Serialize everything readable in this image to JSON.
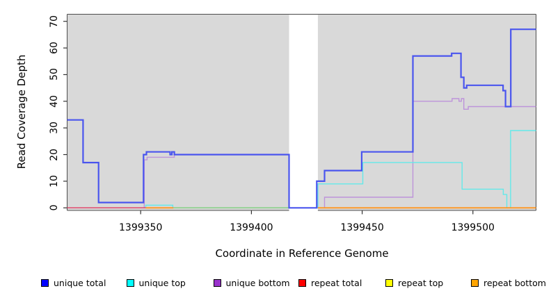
{
  "figure": {
    "xlabel": "Coordinate in Reference Genome",
    "ylabel": "Read Coverage Depth"
  },
  "legend": {
    "items": [
      {
        "label": "unique total",
        "color": "#0000ff"
      },
      {
        "label": "unique top",
        "color": "#00ffff"
      },
      {
        "label": "unique bottom",
        "color": "#9932cc"
      },
      {
        "label": "repeat total",
        "color": "#ff0000"
      },
      {
        "label": "repeat top",
        "color": "#ffff00"
      },
      {
        "label": "repeat bottom",
        "color": "#ffa500"
      }
    ]
  },
  "chart_data": {
    "type": "line",
    "subtype": "step-coverage-plot",
    "title": "",
    "xlabel": "Coordinate in Reference Genome",
    "ylabel": "Read Coverage Depth",
    "x_ticks": [
      1399350,
      1399400,
      1399450,
      1399500
    ],
    "y_ticks": [
      0,
      10,
      20,
      30,
      40,
      50,
      60,
      70
    ],
    "x_range": [
      1399316.8,
      1399528.5
    ],
    "y_range": [
      -1.1,
      72.8
    ],
    "grid": false,
    "plot_background": "#d9d9d9",
    "coverage_gap_band": {
      "x_start": 1399417.0,
      "x_end": 1399430.0,
      "color": "#ffffff"
    },
    "legend_position": "bottom",
    "series": [
      {
        "name": "unique total",
        "legend_color": "#0000ff",
        "line_color": "#4a55ee",
        "line_width": 2.2,
        "segments": [
          {
            "steps": [
              [
                1399316.8,
                33
              ],
              [
                1399324,
                17
              ],
              [
                1399331,
                2
              ],
              [
                1399351.3,
                20
              ],
              [
                1399352.6,
                21
              ],
              [
                1399363.3,
                20
              ],
              [
                1399364.1,
                21
              ],
              [
                1399365.2,
                20
              ],
              [
                1399417,
                0
              ],
              [
                1399429.5,
                10
              ],
              [
                1399433,
                14
              ],
              [
                1399449.8,
                21
              ],
              [
                1399472.9,
                57
              ],
              [
                1399490.4,
                58
              ],
              [
                1399494.6,
                49
              ],
              [
                1399495.9,
                45
              ],
              [
                1399497.2,
                46
              ],
              [
                1399513.6,
                44
              ],
              [
                1399514.7,
                38
              ],
              [
                1399517.1,
                67
              ]
            ],
            "end": 1399528.5
          }
        ]
      },
      {
        "name": "unique top",
        "legend_color": "#00ffff",
        "line_color": "#63e9e9",
        "line_width": 1.4,
        "segments": [
          {
            "steps": [
              [
                1399316.8,
                0
              ],
              [
                1399352.3,
                1
              ],
              [
                1399364.5,
                0
              ],
              [
                1399430,
                9
              ],
              [
                1399450.3,
                17
              ],
              [
                1399495.1,
                7
              ],
              [
                1399513.7,
                5
              ],
              [
                1399515.3,
                0
              ],
              [
                1399517,
                29
              ]
            ],
            "end": 1399528.5
          }
        ]
      },
      {
        "name": "unique bottom",
        "legend_color": "#9932cc",
        "line_color": "#bd93da",
        "line_width": 1.4,
        "segments": [
          {
            "steps": [
              [
                1399316.8,
                0
              ],
              [
                1399351.6,
                18
              ],
              [
                1399352.9,
                19
              ],
              [
                1399365.2,
                20
              ],
              [
                1399417,
                0
              ],
              [
                1399433,
                4
              ],
              [
                1399472.9,
                40
              ],
              [
                1399490.6,
                41
              ],
              [
                1399493.7,
                40
              ],
              [
                1399494.8,
                41
              ],
              [
                1399495.9,
                37
              ],
              [
                1399497.9,
                38
              ]
            ],
            "end": 1399528.5
          }
        ]
      },
      {
        "name": "repeat top",
        "legend_color": "#ffff00",
        "line_color": "#84cf84",
        "render_note": "zero line; appears green on screen where it overlaps unique-top at zero",
        "line_width": 1.5,
        "segments": [
          {
            "steps": [
              [
                1399364.8,
                0
              ]
            ],
            "end": 1399417
          }
        ]
      },
      {
        "name": "repeat total",
        "legend_color": "#ff0000",
        "line_color": "#e0476c",
        "line_width": 1.5,
        "segments": [
          {
            "steps": [
              [
                1399316.8,
                0
              ]
            ],
            "end": 1399352.3
          }
        ]
      },
      {
        "name": "repeat bottom",
        "legend_color": "#ffa500",
        "line_color": "#ff941f",
        "line_width": 1.8,
        "segments": [
          {
            "steps": [
              [
                1399352.3,
                0
              ]
            ],
            "end": 1399364.8
          },
          {
            "steps": [
              [
                1399430,
                0
              ]
            ],
            "end": 1399528.5
          }
        ]
      }
    ],
    "draw_order": [
      "unique bottom",
      "unique top",
      "repeat top",
      "repeat total",
      "repeat bottom",
      "unique total"
    ]
  }
}
